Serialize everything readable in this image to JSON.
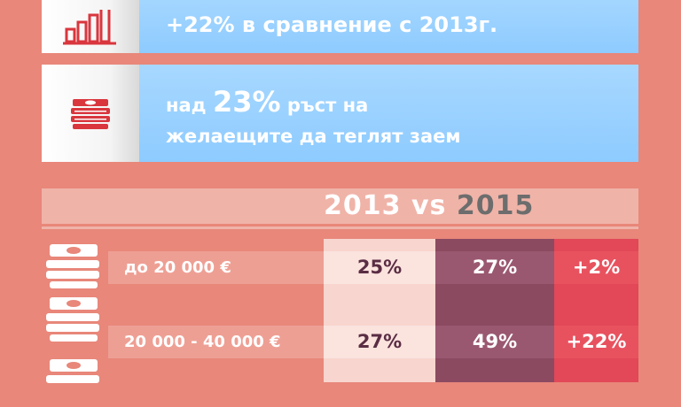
{
  "cards": [
    {
      "icon": "bar-chart-icon",
      "text": "+22% в сравнение с 2013г."
    },
    {
      "icon": "money-stack-icon",
      "prefix": "над ",
      "highlight": "23%",
      "line1_rest": " ръст на",
      "line2": "желаещите да теглят заем"
    }
  ],
  "comparison": {
    "year_a": "2013",
    "vs": "vs",
    "year_b": "2015",
    "rows": [
      {
        "label": "до 20 000 €",
        "v2013": "25%",
        "v2015": "27%",
        "diff": "+2%"
      },
      {
        "label": "20 000 - 40 000 €",
        "v2013": "27%",
        "v2015": "49%",
        "diff": "+22%"
      }
    ]
  },
  "colors": {
    "background": "#e8877a",
    "card_blue": "#8ecbff",
    "col_2015": "#8c4a61",
    "col_diff": "#e24858",
    "icon_red": "#d9363e"
  }
}
